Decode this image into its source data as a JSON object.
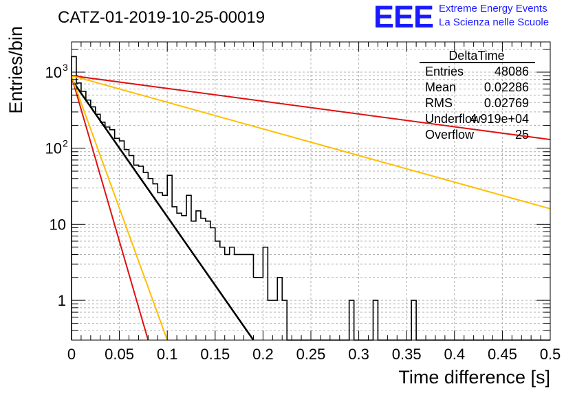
{
  "header": {
    "run_title": "CATZ-01-2019-10-25-00019",
    "logo_text": "EEE",
    "logo_line1": "Extreme Energy Events",
    "logo_line2": "La Scienza nelle Scuole"
  },
  "colors": {
    "logo_blue": "#1a1aff",
    "red": "#e01010",
    "orange": "#ffbf00",
    "black": "#000000",
    "grid": "#b0b0b0"
  },
  "chart_data": {
    "type": "histogram",
    "xlabel": "Time difference [s]",
    "ylabel": "Entries/bin",
    "xlim": [
      0,
      0.5
    ],
    "ylim": [
      0.3,
      2500
    ],
    "y_scale": "log",
    "grid": true,
    "x_ticks": [
      "0",
      "0.05",
      "0.1",
      "0.15",
      "0.2",
      "0.25",
      "0.3",
      "0.35",
      "0.4",
      "0.45",
      "0.5"
    ],
    "x_tick_values": [
      0,
      0.05,
      0.1,
      0.15,
      0.2,
      0.25,
      0.3,
      0.35,
      0.4,
      0.45,
      0.5
    ],
    "y_ticks": [
      {
        "value": 1,
        "base": "1",
        "exp": ""
      },
      {
        "value": 10,
        "base": "10",
        "exp": ""
      },
      {
        "value": 100,
        "base": "10",
        "exp": "2"
      },
      {
        "value": 1000,
        "base": "10",
        "exp": "3"
      }
    ],
    "stats_box": {
      "title": "DeltaTime",
      "rows": [
        {
          "label": "Entries",
          "value": "48086"
        },
        {
          "label": "Mean",
          "value": "0.02286"
        },
        {
          "label": "RMS",
          "value": "0.02769"
        },
        {
          "label": "Underflow",
          "value": "4.919e+04"
        },
        {
          "label": "Overflow",
          "value": "25"
        }
      ]
    },
    "histogram": {
      "bin_width": 0.005,
      "counts": [
        1600,
        720,
        560,
        430,
        350,
        280,
        220,
        190,
        175,
        135,
        125,
        96,
        80,
        60,
        58,
        48,
        40,
        34,
        26,
        24,
        44,
        17,
        14,
        13,
        24,
        11,
        15,
        12,
        11,
        9,
        6,
        5,
        4,
        5,
        4,
        4,
        4,
        4,
        2,
        2,
        5,
        1,
        1,
        2,
        1,
        0,
        0,
        0,
        0,
        0,
        0,
        0,
        0,
        0,
        0,
        0,
        0,
        0,
        1,
        0,
        0,
        0,
        0,
        1,
        0,
        0,
        0,
        0,
        0,
        0,
        0,
        1,
        0,
        0,
        0,
        0,
        0,
        0,
        0,
        0,
        0,
        0,
        0,
        0,
        0,
        0,
        0,
        0,
        0,
        0,
        0,
        0,
        0,
        0,
        0,
        0,
        0,
        0,
        0,
        0
      ]
    },
    "fit_lines": [
      {
        "color": "black",
        "x": [
          0.0,
          0.19
        ],
        "y": [
          800,
          0.3
        ]
      },
      {
        "color": "red",
        "x": [
          0.0,
          0.08
        ],
        "y": [
          880,
          0.3
        ]
      },
      {
        "color": "orange",
        "x": [
          0.0,
          0.1
        ],
        "y": [
          880,
          0.3
        ]
      },
      {
        "color": "red",
        "x": [
          0.0,
          0.5
        ],
        "y": [
          900,
          130
        ]
      },
      {
        "color": "orange",
        "x": [
          0.0,
          0.5
        ],
        "y": [
          900,
          16
        ]
      }
    ]
  }
}
